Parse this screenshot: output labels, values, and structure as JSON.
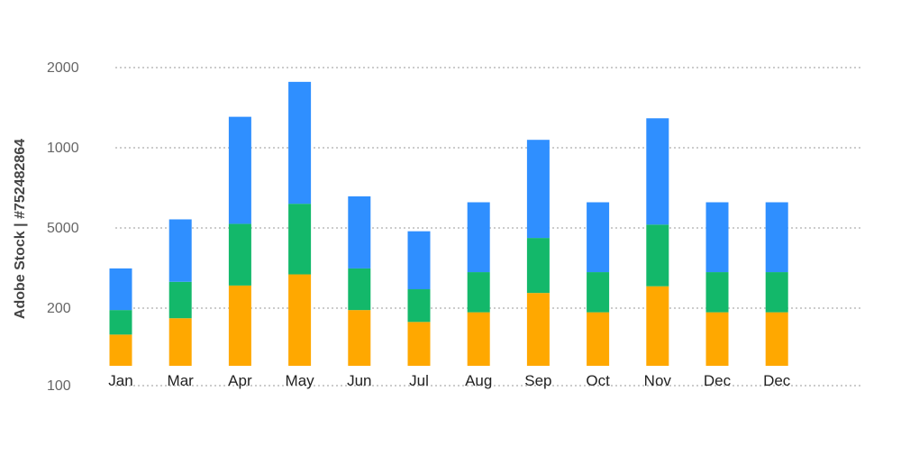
{
  "watermark": "Adobe Stock | #752482864",
  "chart_data": {
    "type": "bar",
    "stacked": true,
    "y_axis_labels": [
      "100",
      "200",
      "5000",
      "1000",
      "2000"
    ],
    "categories": [
      "Jan",
      "Mar",
      "Apr",
      "May",
      "Jun",
      "Jul",
      "Aug",
      "Sep",
      "Oct",
      "Nov",
      "Dec",
      "Dec"
    ],
    "series": [
      {
        "color": "#FFA800",
        "values": [
          0.42,
          0.64,
          1.08,
          1.23,
          0.75,
          0.59,
          0.72,
          0.98,
          0.72,
          1.07,
          0.72,
          0.72
        ]
      },
      {
        "color": "#13B86A",
        "values": [
          0.33,
          0.49,
          0.83,
          0.95,
          0.56,
          0.44,
          0.54,
          0.74,
          0.54,
          0.83,
          0.54,
          0.54
        ]
      },
      {
        "color": "#2F8FFF",
        "values": [
          0.56,
          0.84,
          1.44,
          1.64,
          0.97,
          0.78,
          0.94,
          1.32,
          0.94,
          1.43,
          0.94,
          0.94
        ]
      }
    ],
    "ylim": [
      0,
      4
    ],
    "grid": true,
    "legend": "none",
    "title": "",
    "xlabel": "",
    "ylabel": ""
  }
}
